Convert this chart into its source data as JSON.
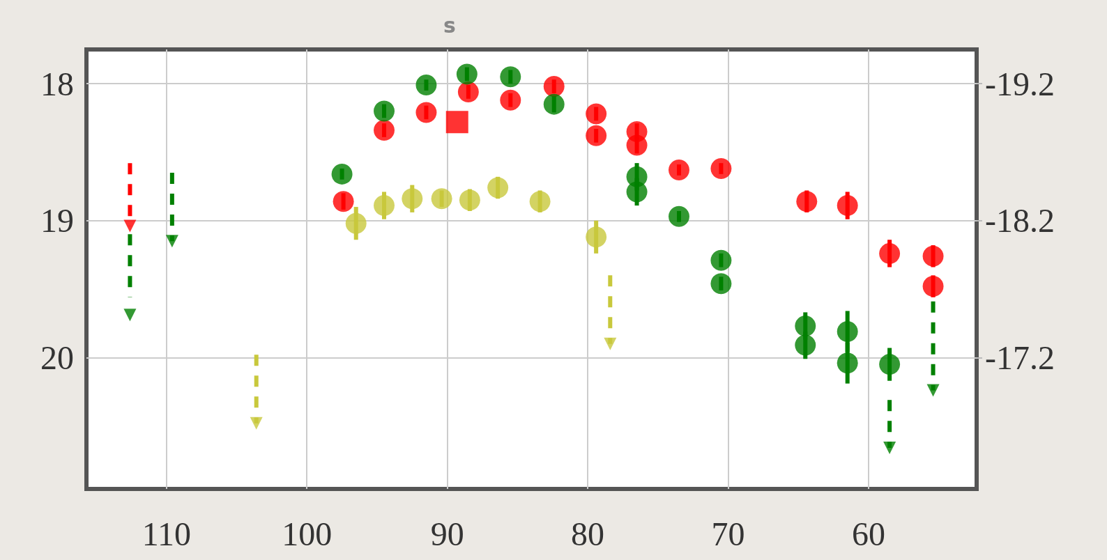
{
  "chart_data": {
    "type": "scatter",
    "title": "s",
    "xlim": [
      115.7,
      52.3
    ],
    "xticks": [
      110,
      100,
      90,
      80,
      70,
      60
    ],
    "ylim": [
      20.96,
      17.75
    ],
    "yticks": [
      18,
      19,
      20
    ],
    "y2lim": [
      -16.24,
      -19.45
    ],
    "y2ticks": [
      -19.2,
      -18.2,
      -17.2
    ],
    "grid": true,
    "marker": "circle",
    "series": [
      {
        "color": "#ff0000",
        "x": [
          97.4,
          94.5,
          91.5,
          88.5,
          85.5,
          82.4,
          79.4,
          79.4,
          76.5,
          76.5,
          73.5,
          70.5,
          64.4,
          61.5,
          58.5,
          55.4,
          55.4
        ],
        "values": [
          18.86,
          18.34,
          18.21,
          18.06,
          18.12,
          18.02,
          18.22,
          18.38,
          18.35,
          18.45,
          18.63,
          18.62,
          18.86,
          18.89,
          19.24,
          19.26,
          19.48
        ],
        "errors": [
          0.06,
          0.05,
          0.05,
          0.05,
          0.05,
          0.05,
          0.05,
          0.05,
          0.06,
          0.06,
          0.04,
          0.04,
          0.08,
          0.1,
          0.1,
          0.08,
          0.08
        ]
      },
      {
        "color": "#ff0000",
        "marker": "square",
        "x": [
          89.3
        ],
        "values": [
          18.28
        ]
      },
      {
        "color": "#008000",
        "x": [
          97.5,
          94.5,
          91.5,
          88.6,
          85.5,
          82.4,
          76.5,
          76.5,
          73.5,
          70.5,
          70.5,
          64.5,
          64.5,
          61.5,
          61.5,
          58.5
        ],
        "values": [
          18.66,
          18.2,
          18.01,
          17.93,
          17.95,
          18.15,
          18.68,
          18.79,
          18.97,
          19.29,
          19.46,
          19.77,
          19.91,
          19.81,
          20.04,
          20.05
        ],
        "errors": [
          0.04,
          0.05,
          0.04,
          0.05,
          0.05,
          0.06,
          0.1,
          0.1,
          0.04,
          0.05,
          0.05,
          0.1,
          0.1,
          0.15,
          0.15,
          0.12
        ]
      },
      {
        "color": "#c8c83c",
        "x": [
          96.5,
          94.5,
          92.5,
          90.4,
          88.4,
          86.4,
          83.4,
          79.4
        ],
        "values": [
          19.02,
          18.89,
          18.84,
          18.84,
          18.85,
          18.76,
          18.86,
          19.12
        ],
        "errors": [
          0.12,
          0.1,
          0.1,
          0.06,
          0.08,
          0.08,
          0.08,
          0.12
        ]
      },
      {
        "color": "#ff0000",
        "marker": "triangle",
        "line_style": "dashed",
        "x": [
          112.6
        ],
        "values": [
          19.04
        ],
        "errors": [
          [
            18.58,
            19.04
          ]
        ]
      },
      {
        "color": "#008000",
        "marker": "triangle",
        "line_style": "dashed",
        "x": [
          112.6,
          109.6,
          58.5,
          55.4
        ],
        "values": [
          19.69,
          19.15,
          20.66,
          20.24
        ],
        "errors": [
          [
            19.1,
            19.56
          ],
          [
            18.65,
            19.15
          ],
          [
            20.31,
            20.66
          ],
          [
            19.59,
            20.24
          ]
        ]
      },
      {
        "color": "#c8c83c",
        "marker": "triangle",
        "line_style": "dashed",
        "x": [
          103.6,
          78.4
        ],
        "values": [
          20.48,
          19.9
        ],
        "errors": [
          [
            19.98,
            20.48
          ],
          [
            19.4,
            19.9
          ]
        ]
      }
    ]
  }
}
